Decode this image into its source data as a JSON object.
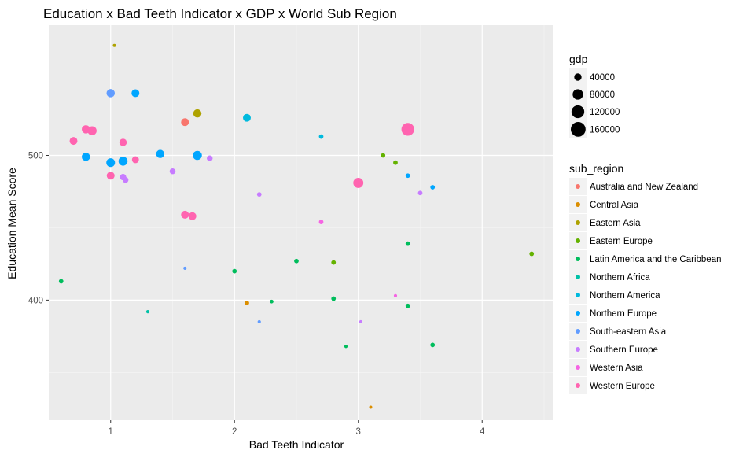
{
  "chart_data": {
    "type": "scatter",
    "title": "Education x Bad Teeth Indicator x GDP x World Sub Region",
    "xlabel": "Bad Teeth Indicator",
    "ylabel": "Education Mean Score",
    "xlim": [
      0.5,
      4.57
    ],
    "ylim": [
      317,
      590
    ],
    "x_ticks": [
      1,
      2,
      3,
      4
    ],
    "y_ticks": [
      400,
      500
    ],
    "grid": true,
    "background": "#ebebeb",
    "size_legend": {
      "title": "gdp",
      "entries": [
        {
          "label": "40000",
          "value": 40000
        },
        {
          "label": "80000",
          "value": 80000
        },
        {
          "label": "120000",
          "value": 120000
        },
        {
          "label": "160000",
          "value": 160000
        }
      ]
    },
    "color_legend": {
      "title": "sub_region",
      "entries": [
        {
          "label": "Australia and New Zealand",
          "color": "#F8766D"
        },
        {
          "label": "Central Asia",
          "color": "#DB8E00"
        },
        {
          "label": "Eastern Asia",
          "color": "#AEA200"
        },
        {
          "label": "Eastern Europe",
          "color": "#64B200"
        },
        {
          "label": "Latin America and the Caribbean",
          "color": "#00BD5C"
        },
        {
          "label": "Northern Africa",
          "color": "#00C1A7"
        },
        {
          "label": "Northern America",
          "color": "#00BADE"
        },
        {
          "label": "Northern Europe",
          "color": "#00A6FF"
        },
        {
          "label": "South-eastern Asia",
          "color": "#619CFF"
        },
        {
          "label": "Southern Europe",
          "color": "#C77CFF"
        },
        {
          "label": "Western Asia",
          "color": "#F564E3"
        },
        {
          "label": "Western Europe",
          "color": "#FF64B0"
        }
      ]
    },
    "points": [
      {
        "x": 1.03,
        "y": 576,
        "gdp": 4000,
        "region": "Eastern Asia"
      },
      {
        "x": 1.0,
        "y": 543,
        "gdp": 50000,
        "region": "South-eastern Asia"
      },
      {
        "x": 1.2,
        "y": 543,
        "gdp": 45000,
        "region": "Northern Europe"
      },
      {
        "x": 1.6,
        "y": 523,
        "gdp": 45000,
        "region": "Australia and New Zealand"
      },
      {
        "x": 1.7,
        "y": 529,
        "gdp": 50000,
        "region": "Eastern Asia"
      },
      {
        "x": 2.1,
        "y": 526,
        "gdp": 45000,
        "region": "Northern America"
      },
      {
        "x": 0.8,
        "y": 518,
        "gdp": 50000,
        "region": "Western Europe"
      },
      {
        "x": 0.85,
        "y": 517,
        "gdp": 60000,
        "region": "Western Europe"
      },
      {
        "x": 0.7,
        "y": 510,
        "gdp": 45000,
        "region": "Western Europe"
      },
      {
        "x": 1.1,
        "y": 509,
        "gdp": 40000,
        "region": "Western Europe"
      },
      {
        "x": 0.8,
        "y": 499,
        "gdp": 50000,
        "region": "Northern Europe"
      },
      {
        "x": 1.0,
        "y": 495,
        "gdp": 55000,
        "region": "Northern Europe"
      },
      {
        "x": 1.1,
        "y": 496,
        "gdp": 60000,
        "region": "Northern Europe"
      },
      {
        "x": 1.2,
        "y": 497,
        "gdp": 35000,
        "region": "Western Europe"
      },
      {
        "x": 1.4,
        "y": 501,
        "gdp": 50000,
        "region": "Northern Europe"
      },
      {
        "x": 1.7,
        "y": 500,
        "gdp": 60000,
        "region": "Northern Europe"
      },
      {
        "x": 1.8,
        "y": 498,
        "gdp": 25000,
        "region": "Southern Europe"
      },
      {
        "x": 1.5,
        "y": 489,
        "gdp": 25000,
        "region": "Southern Europe"
      },
      {
        "x": 1.0,
        "y": 486,
        "gdp": 45000,
        "region": "Western Europe"
      },
      {
        "x": 1.1,
        "y": 485,
        "gdp": 30000,
        "region": "Southern Europe"
      },
      {
        "x": 1.12,
        "y": 483,
        "gdp": 25000,
        "region": "Southern Europe"
      },
      {
        "x": 1.6,
        "y": 459,
        "gdp": 45000,
        "region": "Western Europe"
      },
      {
        "x": 1.66,
        "y": 458,
        "gdp": 45000,
        "region": "Western Europe"
      },
      {
        "x": 2.2,
        "y": 473,
        "gdp": 15000,
        "region": "Southern Europe"
      },
      {
        "x": 2.7,
        "y": 513,
        "gdp": 15000,
        "region": "Northern America"
      },
      {
        "x": 2.7,
        "y": 454,
        "gdp": 15000,
        "region": "Western Asia"
      },
      {
        "x": 3.0,
        "y": 481,
        "gdp": 75000,
        "region": "Western Europe"
      },
      {
        "x": 3.2,
        "y": 500,
        "gdp": 15000,
        "region": "Eastern Europe"
      },
      {
        "x": 3.3,
        "y": 495,
        "gdp": 15000,
        "region": "Eastern Europe"
      },
      {
        "x": 3.4,
        "y": 518,
        "gdp": 120000,
        "region": "Western Europe"
      },
      {
        "x": 3.4,
        "y": 486,
        "gdp": 15000,
        "region": "Northern Europe"
      },
      {
        "x": 3.6,
        "y": 478,
        "gdp": 15000,
        "region": "Northern Europe"
      },
      {
        "x": 3.5,
        "y": 474,
        "gdp": 15000,
        "region": "Southern Europe"
      },
      {
        "x": 3.4,
        "y": 439,
        "gdp": 15000,
        "region": "Latin America and the Caribbean"
      },
      {
        "x": 4.4,
        "y": 432,
        "gdp": 15000,
        "region": "Eastern Europe"
      },
      {
        "x": 0.6,
        "y": 413,
        "gdp": 15000,
        "region": "Latin America and the Caribbean"
      },
      {
        "x": 1.3,
        "y": 392,
        "gdp": 8000,
        "region": "Northern Africa"
      },
      {
        "x": 1.6,
        "y": 422,
        "gdp": 8000,
        "region": "South-eastern Asia"
      },
      {
        "x": 2.0,
        "y": 420,
        "gdp": 15000,
        "region": "Latin America and the Caribbean"
      },
      {
        "x": 2.1,
        "y": 398,
        "gdp": 15000,
        "region": "Central Asia"
      },
      {
        "x": 2.2,
        "y": 385,
        "gdp": 8000,
        "region": "South-eastern Asia"
      },
      {
        "x": 2.3,
        "y": 399,
        "gdp": 10000,
        "region": "Latin America and the Caribbean"
      },
      {
        "x": 2.5,
        "y": 427,
        "gdp": 15000,
        "region": "Latin America and the Caribbean"
      },
      {
        "x": 2.8,
        "y": 426,
        "gdp": 15000,
        "region": "Eastern Europe"
      },
      {
        "x": 2.8,
        "y": 401,
        "gdp": 15000,
        "region": "Latin America and the Caribbean"
      },
      {
        "x": 2.9,
        "y": 368,
        "gdp": 8000,
        "region": "Latin America and the Caribbean"
      },
      {
        "x": 3.02,
        "y": 385,
        "gdp": 8000,
        "region": "Southern Europe"
      },
      {
        "x": 3.1,
        "y": 326,
        "gdp": 4000,
        "region": "Central Asia"
      },
      {
        "x": 3.3,
        "y": 403,
        "gdp": 8000,
        "region": "Western Asia"
      },
      {
        "x": 3.4,
        "y": 396,
        "gdp": 15000,
        "region": "Latin America and the Caribbean"
      },
      {
        "x": 3.6,
        "y": 369,
        "gdp": 15000,
        "region": "Latin America and the Caribbean"
      }
    ]
  }
}
